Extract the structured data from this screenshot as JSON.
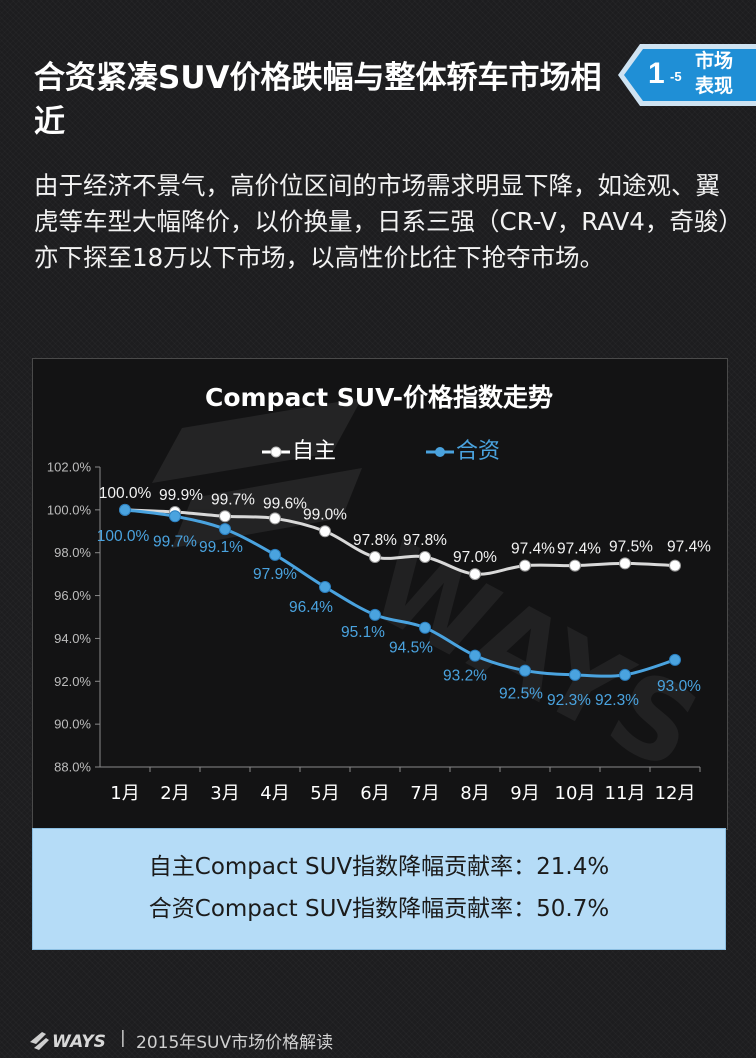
{
  "header": {
    "title": "合资紧凑SUV价格跌幅与整体轿车市场相近",
    "badge_number": "1",
    "badge_sub": "-5",
    "badge_line1": "市场",
    "badge_line2": "表现"
  },
  "intro": "由于经济不景气，高价位区间的市场需求明显下降，如途观、翼虎等车型大幅降价，以价换量，日系三强（CR-V，RAV4，奇骏）亦下探至18万以下市场，以高性价比往下抢夺市场。",
  "chart_data": {
    "type": "line",
    "title": "Compact  SUV-价格指数走势",
    "categories": [
      "1月",
      "2月",
      "3月",
      "4月",
      "5月",
      "6月",
      "7月",
      "8月",
      "9月",
      "10月",
      "11月",
      "12月"
    ],
    "series": [
      {
        "name": "自主",
        "color": "#ffffff",
        "values": [
          100.0,
          99.9,
          99.7,
          99.6,
          99.0,
          97.8,
          97.8,
          97.0,
          97.4,
          97.4,
          97.5,
          97.4
        ],
        "labels": [
          "100.0%",
          "99.9%",
          "99.7%",
          "99.6%",
          "99.0%",
          "97.8%",
          "97.8%",
          "97.0%",
          "97.4%",
          "97.4%",
          "97.5%",
          "97.4%"
        ]
      },
      {
        "name": "合资",
        "color": "#4aa3df",
        "values": [
          100.0,
          99.7,
          99.1,
          97.9,
          96.4,
          95.1,
          94.5,
          93.2,
          92.5,
          92.3,
          92.3,
          93.0
        ],
        "labels": [
          "100.0%",
          "99.7%",
          "99.1%",
          "97.9%",
          "96.4%",
          "95.1%",
          "94.5%",
          "93.2%",
          "92.5%",
          "92.3%",
          "92.3%",
          "93.0%"
        ]
      }
    ],
    "ylim": [
      88.0,
      102.0
    ],
    "yticks": [
      "88.0%",
      "90.0%",
      "92.0%",
      "94.0%",
      "96.0%",
      "98.0%",
      "100.0%",
      "102.0%"
    ],
    "grid": false,
    "legend_position": "top"
  },
  "summary": {
    "line1": "自主Compact SUV指数降幅贡献率：21.4%",
    "line2": "合资Compact  SUV指数降幅贡献率：50.7%"
  },
  "footer": {
    "logo": "WAYS",
    "separator": "|",
    "text": "2015年SUV市场价格解读"
  }
}
